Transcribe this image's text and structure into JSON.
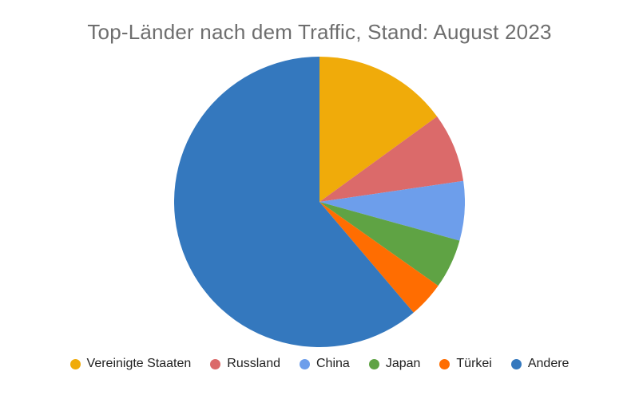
{
  "page": {
    "background": "#FFFFFF"
  },
  "chart_data": {
    "type": "pie",
    "title": "Top-Länder nach dem Traffic, Stand: August 2023",
    "title_color": "#6E6E6E",
    "legend_position": "bottom",
    "legend_text_color": "#222222",
    "start_angle_deg": 0,
    "direction": "clockwise",
    "unit": "percent_share",
    "categories": [
      "Vereinigte Staaten",
      "Russland",
      "China",
      "Japan",
      "Türkei",
      "Andere"
    ],
    "values": [
      15,
      7.7,
      6.6,
      5.5,
      4,
      61.2
    ],
    "colors": [
      "#F0AB0A",
      "#DB6A6A",
      "#6D9EEB",
      "#5FA344",
      "#FF6D01",
      "#3478BE"
    ]
  }
}
